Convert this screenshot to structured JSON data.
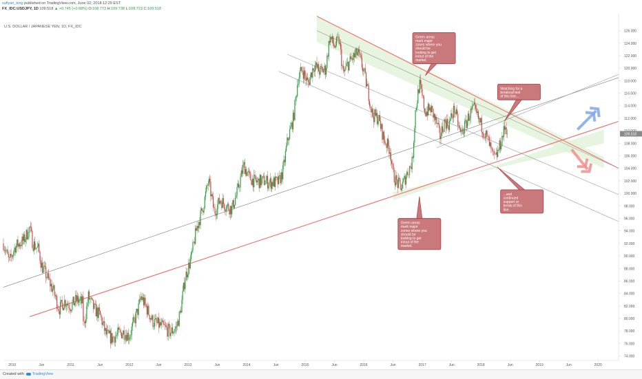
{
  "header": {
    "author": "sufiyan_king",
    "published": "published on TradingView.com, June 02, 2018 12:29 EST",
    "symbol": "FX_IDC:USDJPY, 1D",
    "last": "109.518",
    "change": "▲ +0.745 (+0.68%)",
    "ohlc": [
      {
        "k": "O:",
        "v": "108.773"
      },
      {
        "k": "H:",
        "v": "109.738"
      },
      {
        "k": "L:",
        "v": "108.723"
      },
      {
        "k": "C:",
        "v": "109.518"
      }
    ],
    "instrument": "U.S. DOLLAR / JAPANESE YEN, 1D, FX_IDC"
  },
  "footer": {
    "created": "Created with",
    "brand": "TradingView"
  },
  "colors": {
    "up": "#2e9e45",
    "down": "#d0494b",
    "callout_fill": "#c9797b",
    "callout_border": "#b04345",
    "zone": "#dff2d6",
    "price_tag": "#8a8a8a"
  },
  "chart_data": {
    "type": "candlestick",
    "title": "U.S. DOLLAR / JAPANESE YEN, 1D, FX_IDC",
    "x_ticks": [
      "2010",
      "Jun",
      "2011",
      "Jun",
      "2012",
      "Jun",
      "2013",
      "Jun",
      "2014",
      "Jun",
      "2015",
      "Jun",
      "2016",
      "Jun",
      "2017",
      "Jun",
      "2018",
      "Jun",
      "2019",
      "Jun",
      "2020"
    ],
    "x_tick_years": [
      2010,
      2010.5,
      2011,
      2011.5,
      2012,
      2012.5,
      2013,
      2013.5,
      2014,
      2014.5,
      2015,
      2015.5,
      2016,
      2016.5,
      2017,
      2017.5,
      2018,
      2018.5,
      2019,
      2019.5,
      2020
    ],
    "y_ticks": [
      "126.000",
      "124.000",
      "122.000",
      "120.000",
      "118.000",
      "116.000",
      "114.000",
      "112.000",
      "110.000",
      "108.000",
      "106.000",
      "104.000",
      "102.000",
      "100.000",
      "98.000",
      "96.000",
      "94.000",
      "92.000",
      "90.000",
      "88.000",
      "86.000",
      "84.000",
      "82.000",
      "80.000",
      "78.000",
      "76.000",
      "74.000"
    ],
    "ylim": [
      73.3,
      128.7
    ],
    "xlim": [
      2009.85,
      2020.35
    ],
    "last_price": "109.518",
    "close_path": [
      [
        2009.85,
        92.0
      ],
      [
        2009.95,
        89.0
      ],
      [
        2010.05,
        91.5
      ],
      [
        2010.2,
        92.5
      ],
      [
        2010.3,
        94.5
      ],
      [
        2010.35,
        92.0
      ],
      [
        2010.45,
        91.0
      ],
      [
        2010.5,
        88.5
      ],
      [
        2010.6,
        86.5
      ],
      [
        2010.7,
        84.5
      ],
      [
        2010.8,
        81.5
      ],
      [
        2010.9,
        82.8
      ],
      [
        2011.0,
        82.0
      ],
      [
        2011.1,
        83.0
      ],
      [
        2011.2,
        82.5
      ],
      [
        2011.22,
        78.5
      ],
      [
        2011.3,
        83.5
      ],
      [
        2011.4,
        81.5
      ],
      [
        2011.5,
        80.5
      ],
      [
        2011.6,
        77.5
      ],
      [
        2011.7,
        76.8
      ],
      [
        2011.8,
        77.5
      ],
      [
        2011.9,
        77.8
      ],
      [
        2012.0,
        77.2
      ],
      [
        2012.15,
        81.5
      ],
      [
        2012.2,
        83.5
      ],
      [
        2012.3,
        81.5
      ],
      [
        2012.4,
        79.5
      ],
      [
        2012.5,
        79.0
      ],
      [
        2012.6,
        78.5
      ],
      [
        2012.7,
        77.8
      ],
      [
        2012.8,
        78.5
      ],
      [
        2012.87,
        81.0
      ],
      [
        2012.95,
        86.5
      ],
      [
        2013.05,
        89.5
      ],
      [
        2013.15,
        94.5
      ],
      [
        2013.25,
        97.5
      ],
      [
        2013.35,
        102.0
      ],
      [
        2013.45,
        97.0
      ],
      [
        2013.55,
        99.0
      ],
      [
        2013.65,
        98.0
      ],
      [
        2013.75,
        97.5
      ],
      [
        2013.85,
        100.5
      ],
      [
        2013.95,
        104.5
      ],
      [
        2014.05,
        102.5
      ],
      [
        2014.15,
        101.8
      ],
      [
        2014.3,
        102.0
      ],
      [
        2014.4,
        101.7
      ],
      [
        2014.55,
        101.8
      ],
      [
        2014.62,
        103.5
      ],
      [
        2014.7,
        108.5
      ],
      [
        2014.8,
        112.0
      ],
      [
        2014.88,
        118.5
      ],
      [
        2014.95,
        119.8
      ],
      [
        2015.05,
        117.5
      ],
      [
        2015.15,
        120.5
      ],
      [
        2015.25,
        119.5
      ],
      [
        2015.35,
        119.8
      ],
      [
        2015.42,
        125.0
      ],
      [
        2015.5,
        123.5
      ],
      [
        2015.58,
        124.5
      ],
      [
        2015.65,
        119.0
      ],
      [
        2015.72,
        120.5
      ],
      [
        2015.8,
        121.5
      ],
      [
        2015.9,
        122.5
      ],
      [
        2016.0,
        119.5
      ],
      [
        2016.08,
        116.0
      ],
      [
        2016.15,
        112.5
      ],
      [
        2016.25,
        112.0
      ],
      [
        2016.35,
        108.5
      ],
      [
        2016.45,
        107.0
      ],
      [
        2016.5,
        103.0
      ],
      [
        2016.58,
        101.5
      ],
      [
        2016.65,
        101.0
      ],
      [
        2016.75,
        103.5
      ],
      [
        2016.83,
        105.0
      ],
      [
        2016.88,
        113.0
      ],
      [
        2016.95,
        117.5
      ],
      [
        2017.05,
        113.0
      ],
      [
        2017.15,
        113.5
      ],
      [
        2017.25,
        111.0
      ],
      [
        2017.3,
        109.0
      ],
      [
        2017.38,
        111.5
      ],
      [
        2017.45,
        111.0
      ],
      [
        2017.55,
        113.5
      ],
      [
        2017.65,
        109.5
      ],
      [
        2017.72,
        110.5
      ],
      [
        2017.8,
        112.5
      ],
      [
        2017.88,
        113.5
      ],
      [
        2017.95,
        112.0
      ],
      [
        2018.05,
        110.0
      ],
      [
        2018.12,
        108.5
      ],
      [
        2018.2,
        106.0
      ],
      [
        2018.25,
        105.5
      ],
      [
        2018.32,
        107.5
      ],
      [
        2018.38,
        109.5
      ],
      [
        2018.42,
        110.8
      ],
      [
        2018.46,
        109.5
      ]
    ],
    "trendlines": [
      {
        "name": "upper-red-resistance",
        "color": "#f26d6d",
        "x": [
          2015.2,
          2020.35
        ],
        "y": [
          128.3,
          104.0
        ]
      },
      {
        "name": "lower-red-support",
        "color": "#f26d6d",
        "x": [
          2010.3,
          2020.35
        ],
        "y": [
          80.3,
          111.5
        ]
      },
      {
        "name": "long-grey-channel",
        "color": "#777777",
        "x": [
          2009.85,
          2020.35
        ],
        "y": [
          85.0,
          118.5
        ]
      },
      {
        "name": "upper-grey-channel",
        "color": "#9a9a9a",
        "x": [
          2017.25,
          2020.35
        ],
        "y": [
          107.3,
          119.0
        ]
      },
      {
        "name": "grey-desc-1",
        "color": "#9a9a9a",
        "x": [
          2015.2,
          2020.35
        ],
        "y": [
          126.0,
          104.0
        ]
      },
      {
        "name": "grey-desc-2",
        "color": "#9a9a9a",
        "x": [
          2014.7,
          2020.35
        ],
        "y": [
          122.2,
          99.8
        ]
      },
      {
        "name": "grey-desc-3",
        "color": "#9a9a9a",
        "x": [
          2014.55,
          2020.35
        ],
        "y": [
          119.5,
          95.5
        ]
      }
    ],
    "zones": [
      {
        "name": "green-zone-upper",
        "x": [
          2015.2,
          2020.1,
          2020.1,
          2015.2
        ],
        "y": [
          128.3,
          105.8,
          104.0,
          124.2
        ]
      },
      {
        "name": "green-zone-lower",
        "x": [
          2016.5,
          2020.1,
          2020.1,
          2016.5
        ],
        "y": [
          98.9,
          110.2,
          108.0,
          100.2
        ]
      }
    ],
    "arrows": [
      {
        "name": "bullish-arrow-icon",
        "color": "#7fa7e8",
        "x": [
          2019.65,
          2020.0
        ],
        "y": [
          110.2,
          113.5
        ]
      },
      {
        "name": "bearish-arrow-icon",
        "color": "#ef8f8f",
        "x": [
          2019.55,
          2019.85
        ],
        "y": [
          107.0,
          103.5
        ]
      }
    ],
    "annotations": [
      {
        "name": "callout-top",
        "text": "Green areas mark major zones where you should be looking to get in/out of the market.",
        "x": 2017.2,
        "y": 123.2,
        "tx": 2017.05,
        "ty": 118.8
      },
      {
        "name": "callout-right",
        "text": "Watching for a breakout test of this line...",
        "x": 2018.65,
        "y": 116.2,
        "tx": 2018.4,
        "ty": 111.5
      },
      {
        "name": "callout-bottom-right",
        "text": "...and continued support or break of this line.",
        "x": 2018.7,
        "y": 98.7,
        "tx": 2018.28,
        "ty": 104.2
      },
      {
        "name": "callout-bottom",
        "text": "Green areas mark major zones where you should be looking to get in/out of the market.",
        "x": 2016.95,
        "y": 93.5,
        "tx": 2016.95,
        "ty": 99.5
      }
    ]
  }
}
